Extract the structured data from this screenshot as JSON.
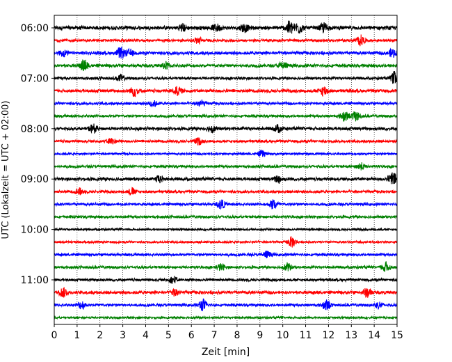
{
  "chart_data": {
    "type": "line",
    "xlabel": "Zeit  [min]",
    "ylabel": "UTC (Lokalzeit = UTC + 02:00)",
    "xlim": [
      0,
      15
    ],
    "x_ticks": [
      0,
      1,
      2,
      3,
      4,
      5,
      6,
      7,
      8,
      9,
      10,
      11,
      12,
      13,
      14,
      15
    ],
    "y_tick_labels": [
      "06:00",
      "07:00",
      "08:00",
      "09:00",
      "10:00",
      "11:00"
    ],
    "vertical_gridlines": "dotted",
    "trace_interval_minutes": 15,
    "trace_colors": [
      "#000000",
      "#ff0000",
      "#0000ff",
      "#008000"
    ],
    "traces": [
      {
        "start": "06:00",
        "color": "#000000",
        "amplitude": 0.35,
        "events": [
          {
            "t": 5.6,
            "a": 0.55
          },
          {
            "t": 7.1,
            "a": 0.5
          },
          {
            "t": 8.3,
            "a": 0.6
          },
          {
            "t": 10.3,
            "a": 1.0
          },
          {
            "t": 10.7,
            "a": 0.8
          },
          {
            "t": 11.8,
            "a": 0.7
          }
        ]
      },
      {
        "start": "06:15",
        "color": "#ff0000",
        "amplitude": 0.25,
        "events": [
          {
            "t": 6.3,
            "a": 0.5
          },
          {
            "t": 13.4,
            "a": 0.8
          }
        ]
      },
      {
        "start": "06:30",
        "color": "#0000ff",
        "amplitude": 0.3,
        "events": [
          {
            "t": 0.4,
            "a": 0.5
          },
          {
            "t": 2.9,
            "a": 0.8
          },
          {
            "t": 3.3,
            "a": 0.5
          },
          {
            "t": 14.8,
            "a": 0.6
          }
        ]
      },
      {
        "start": "06:45",
        "color": "#008000",
        "amplitude": 0.3,
        "events": [
          {
            "t": 1.3,
            "a": 0.9
          },
          {
            "t": 4.9,
            "a": 0.5
          },
          {
            "t": 10.0,
            "a": 0.6
          }
        ]
      },
      {
        "start": "07:00",
        "color": "#000000",
        "amplitude": 0.25,
        "events": [
          {
            "t": 2.9,
            "a": 0.5
          },
          {
            "t": 14.9,
            "a": 1.0
          }
        ]
      },
      {
        "start": "07:15",
        "color": "#ff0000",
        "amplitude": 0.3,
        "events": [
          {
            "t": 3.5,
            "a": 0.8
          },
          {
            "t": 5.4,
            "a": 0.6
          },
          {
            "t": 11.8,
            "a": 0.7
          }
        ]
      },
      {
        "start": "07:30",
        "color": "#0000ff",
        "amplitude": 0.25,
        "events": [
          {
            "t": 4.3,
            "a": 0.5
          },
          {
            "t": 6.4,
            "a": 0.5
          }
        ]
      },
      {
        "start": "07:45",
        "color": "#008000",
        "amplitude": 0.25,
        "events": [
          {
            "t": 12.7,
            "a": 0.8
          },
          {
            "t": 13.2,
            "a": 0.7
          }
        ]
      },
      {
        "start": "08:00",
        "color": "#000000",
        "amplitude": 0.3,
        "events": [
          {
            "t": 1.7,
            "a": 0.6
          },
          {
            "t": 6.9,
            "a": 0.5
          },
          {
            "t": 9.8,
            "a": 0.5
          }
        ]
      },
      {
        "start": "08:15",
        "color": "#ff0000",
        "amplitude": 0.25,
        "events": [
          {
            "t": 2.5,
            "a": 0.5
          },
          {
            "t": 6.3,
            "a": 0.5
          }
        ]
      },
      {
        "start": "08:30",
        "color": "#0000ff",
        "amplitude": 0.2,
        "events": [
          {
            "t": 9.1,
            "a": 0.5
          }
        ]
      },
      {
        "start": "08:45",
        "color": "#008000",
        "amplitude": 0.25,
        "events": [
          {
            "t": 13.4,
            "a": 0.5
          }
        ]
      },
      {
        "start": "09:00",
        "color": "#000000",
        "amplitude": 0.3,
        "events": [
          {
            "t": 4.6,
            "a": 0.5
          },
          {
            "t": 9.8,
            "a": 0.6
          },
          {
            "t": 14.8,
            "a": 1.0
          }
        ]
      },
      {
        "start": "09:15",
        "color": "#ff0000",
        "amplitude": 0.25,
        "events": [
          {
            "t": 1.1,
            "a": 0.5
          },
          {
            "t": 3.4,
            "a": 0.5
          }
        ]
      },
      {
        "start": "09:30",
        "color": "#0000ff",
        "amplitude": 0.25,
        "events": [
          {
            "t": 7.3,
            "a": 0.7
          },
          {
            "t": 9.6,
            "a": 0.8
          }
        ]
      },
      {
        "start": "09:45",
        "color": "#008000",
        "amplitude": 0.25,
        "events": []
      },
      {
        "start": "10:00",
        "color": "#000000",
        "amplitude": 0.2,
        "events": []
      },
      {
        "start": "10:15",
        "color": "#ff0000",
        "amplitude": 0.2,
        "events": [
          {
            "t": 10.4,
            "a": 0.8
          }
        ]
      },
      {
        "start": "10:30",
        "color": "#0000ff",
        "amplitude": 0.25,
        "events": [
          {
            "t": 9.3,
            "a": 0.5
          }
        ]
      },
      {
        "start": "10:45",
        "color": "#008000",
        "amplitude": 0.25,
        "events": [
          {
            "t": 7.3,
            "a": 0.5
          },
          {
            "t": 10.2,
            "a": 0.6
          },
          {
            "t": 14.5,
            "a": 0.8
          }
        ]
      },
      {
        "start": "11:00",
        "color": "#000000",
        "amplitude": 0.25,
        "events": [
          {
            "t": 5.2,
            "a": 0.5
          }
        ]
      },
      {
        "start": "11:15",
        "color": "#ff0000",
        "amplitude": 0.3,
        "events": [
          {
            "t": 0.4,
            "a": 0.7
          },
          {
            "t": 5.3,
            "a": 0.6
          },
          {
            "t": 13.7,
            "a": 0.7
          }
        ]
      },
      {
        "start": "11:30",
        "color": "#0000ff",
        "amplitude": 0.25,
        "events": [
          {
            "t": 1.2,
            "a": 0.6
          },
          {
            "t": 6.5,
            "a": 0.9
          },
          {
            "t": 11.9,
            "a": 0.8
          },
          {
            "t": 14.2,
            "a": 0.5
          }
        ]
      },
      {
        "start": "11:45",
        "color": "#008000",
        "amplitude": 0.2,
        "events": []
      }
    ]
  }
}
